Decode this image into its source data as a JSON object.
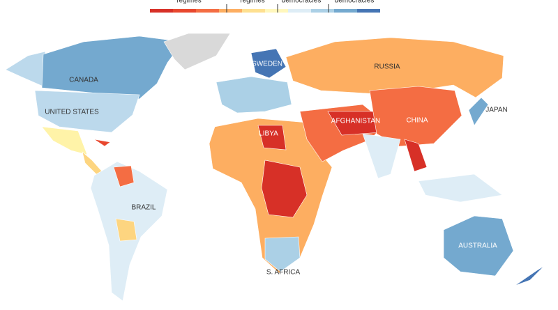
{
  "legend": {
    "labels": [
      "regimes",
      "regimes",
      "democracies",
      "democracies"
    ]
  },
  "map_labels": [
    "CANADA",
    "UNITED STATES",
    "RUSSIA",
    "SWEDEN",
    "CHINA",
    "JAPAN",
    "LIBYA",
    "AFGHANISTAN",
    "BRAZIL",
    "AUSTRALIA",
    "S. AFRICA"
  ]
}
